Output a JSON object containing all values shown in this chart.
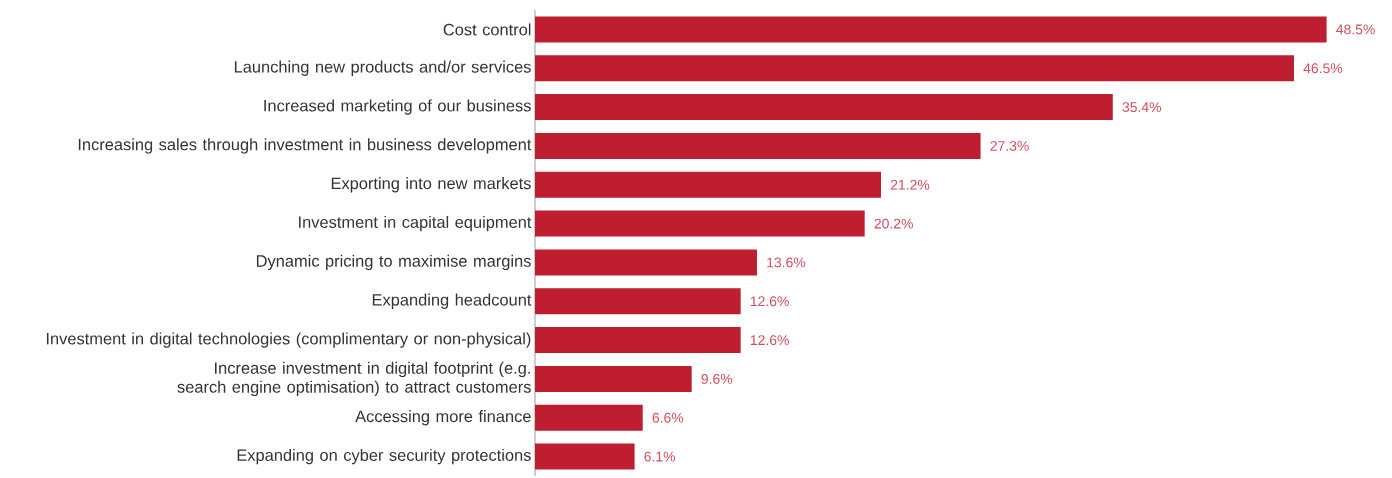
{
  "chart_data": {
    "type": "bar",
    "orientation": "horizontal",
    "color": "#be1e2f",
    "data_labels": true,
    "categories": [
      "Cost control",
      "Launching new products and/or services",
      "Increased marketing of our business",
      "Increasing sales through investment in business development",
      "Exporting into new markets",
      "Investment in capital equipment",
      "Dynamic pricing to maximise margins",
      "Expanding headcount",
      "Investment in digital technologies (complimentary or non-physical)",
      "Increase investment in digital footprint (e.g. search engine optimisation) to attract customers",
      "Accessing more finance",
      "Expanding on cyber security protections"
    ],
    "values": [
      48.5,
      46.5,
      35.4,
      27.3,
      21.2,
      20.2,
      13.6,
      12.6,
      12.6,
      9.6,
      6.6,
      6.1
    ],
    "value_labels": [
      "48.5%",
      "46.5%",
      "35.4%",
      "27.3%",
      "21.2%",
      "20.2%",
      "13.6%",
      "12.6%",
      "12.6%",
      "9.6%",
      "6.6%",
      "6.1%"
    ]
  }
}
